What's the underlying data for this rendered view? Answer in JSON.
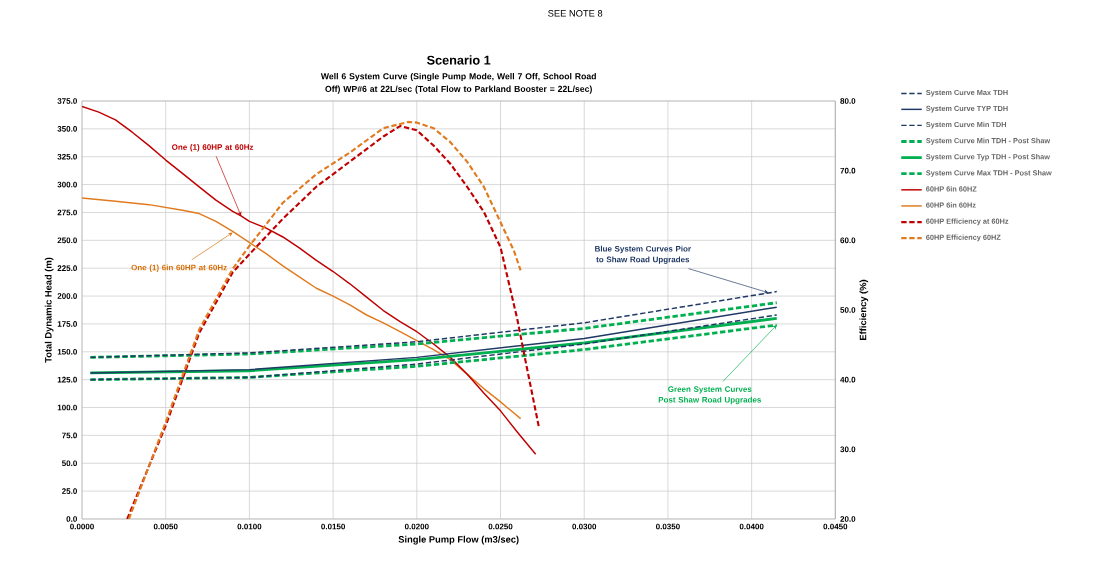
{
  "chart_data": {
    "type": "line",
    "title": "Scenario 1",
    "subtitle": "Well 6 System Curve (Single Pump Mode, Well 7 Off, School Road Off) WP#6 at 22L/sec (Total Flow to Parkland Booster = 22L/sec)",
    "xlabel": "Single Pump Flow (m3/sec)",
    "ylabel": "Total Dynamic Head (m)",
    "y2label": "Efficiency (%)",
    "xlim": [
      0,
      0.045
    ],
    "ylim": [
      0,
      375
    ],
    "y2lim": [
      20,
      80
    ],
    "xticks": [
      {
        "value": 0,
        "label": "0.0000"
      },
      {
        "value": 0.005,
        "label": "0.0050"
      },
      {
        "value": 0.01,
        "label": "0.0100"
      },
      {
        "value": 0.015,
        "label": "0.0150"
      },
      {
        "value": 0.02,
        "label": "0.0200"
      },
      {
        "value": 0.025,
        "label": "0.0250"
      },
      {
        "value": 0.03,
        "label": "0.0300"
      },
      {
        "value": 0.035,
        "label": "0.0350"
      },
      {
        "value": 0.04,
        "label": "0.0400"
      },
      {
        "value": 0.045,
        "label": "0.0450"
      }
    ],
    "yticks": [
      {
        "value": 0,
        "label": "0.0"
      },
      {
        "value": 25,
        "label": "25.0"
      },
      {
        "value": 50,
        "label": "50.0"
      },
      {
        "value": 75,
        "label": "75.0"
      },
      {
        "value": 100,
        "label": "100.0"
      },
      {
        "value": 125,
        "label": "125.0"
      },
      {
        "value": 150,
        "label": "150.0"
      },
      {
        "value": 175,
        "label": "175.0"
      },
      {
        "value": 200,
        "label": "200.0"
      },
      {
        "value": 225,
        "label": "225.0"
      },
      {
        "value": 250,
        "label": "250.0"
      },
      {
        "value": 275,
        "label": "275.0"
      },
      {
        "value": 300,
        "label": "300.0"
      },
      {
        "value": 325,
        "label": "325.0"
      },
      {
        "value": 350,
        "label": "350.0"
      },
      {
        "value": 375,
        "label": "375.0"
      }
    ],
    "y2ticks": [
      {
        "value": 20,
        "label": "20.0"
      },
      {
        "value": 30,
        "label": "30.0"
      },
      {
        "value": 40,
        "label": "40.0"
      },
      {
        "value": 50,
        "label": "50.0"
      },
      {
        "value": 60,
        "label": "60.0"
      },
      {
        "value": 70,
        "label": "70.0"
      },
      {
        "value": 80,
        "label": "80.0"
      }
    ],
    "grid": true,
    "legend": "right",
    "series": [
      {
        "name": "System Curve Max TDH",
        "color": "#1f3864",
        "line_style": "dashed",
        "x": [
          0.0005,
          0.01,
          0.02,
          0.03,
          0.0415
        ],
        "values": [
          145,
          149,
          159,
          176,
          204
        ]
      },
      {
        "name": "System Curve TYP TDH",
        "color": "#1f3864",
        "line_style": "solid",
        "x": [
          0.0005,
          0.01,
          0.02,
          0.03,
          0.0415
        ],
        "values": [
          131,
          134,
          145,
          162,
          190
        ]
      },
      {
        "name": "System Curve Min TDH",
        "color": "#1f3864",
        "line_style": "dashed",
        "x": [
          0.0005,
          0.01,
          0.02,
          0.03,
          0.0415
        ],
        "values": [
          125,
          127,
          139,
          157,
          183
        ]
      },
      {
        "name": "System Curve Min TDH - Post Shaw",
        "color": "#00b050",
        "line_style": "dashed",
        "x": [
          0.0005,
          0.01,
          0.02,
          0.03,
          0.0415
        ],
        "values": [
          125,
          127,
          137,
          152,
          174
        ]
      },
      {
        "name": "System Curve Typ TDH - Post Shaw",
        "color": "#00b050",
        "line_style": "solid",
        "x": [
          0.0005,
          0.01,
          0.02,
          0.03,
          0.0415
        ],
        "values": [
          131,
          133,
          143,
          158,
          180
        ]
      },
      {
        "name": "System Curve Max TDH - Post Shaw",
        "color": "#00b050",
        "line_style": "dashed",
        "x": [
          0.0005,
          0.01,
          0.02,
          0.03,
          0.0415
        ],
        "values": [
          145,
          148,
          157,
          171,
          194
        ]
      },
      {
        "name": "60HP 6in 60HZ",
        "color": "#c00000",
        "line_style": "solid",
        "x": [
          0,
          0.001,
          0.002,
          0.003,
          0.004,
          0.005,
          0.006,
          0.007,
          0.008,
          0.009,
          0.0095,
          0.01,
          0.011,
          0.012,
          0.013,
          0.014,
          0.015,
          0.016,
          0.017,
          0.018,
          0.019,
          0.02,
          0.021,
          0.022,
          0.023,
          0.024,
          0.025,
          0.026,
          0.0271
        ],
        "values": [
          370,
          365,
          358,
          347,
          335,
          322,
          310,
          298,
          286,
          276,
          272,
          267,
          261,
          253,
          243,
          232,
          222,
          211,
          199,
          187,
          177,
          168,
          157,
          145,
          130,
          113,
          97,
          78,
          58
        ]
      },
      {
        "name": "60HP 6in 60Hz",
        "color": "#e07b20",
        "line_style": "solid",
        "x": [
          0,
          0.002,
          0.004,
          0.006,
          0.007,
          0.008,
          0.009,
          0.01,
          0.011,
          0.012,
          0.013,
          0.014,
          0.015,
          0.016,
          0.017,
          0.018,
          0.019,
          0.02,
          0.021,
          0.022,
          0.023,
          0.024,
          0.025,
          0.0262
        ],
        "values": [
          288,
          285,
          282,
          277,
          274,
          267,
          258,
          248,
          238,
          227,
          217,
          207,
          200,
          192,
          183,
          176,
          168,
          160,
          152,
          143,
          130,
          117,
          105,
          90
        ]
      },
      {
        "name": "60HP Efficiency at 60Hz",
        "color": "#c00000",
        "line_style": "dashed",
        "axis": "y2",
        "x": [
          0.0027,
          0.005,
          0.007,
          0.009,
          0.01,
          0.012,
          0.014,
          0.016,
          0.018,
          0.019,
          0.02,
          0.021,
          0.022,
          0.023,
          0.024,
          0.025,
          0.026,
          0.0265,
          0.0273
        ],
        "values": [
          20,
          33.4,
          46.7,
          55.4,
          58,
          63.1,
          67.7,
          71.3,
          74.9,
          76.4,
          75.8,
          73.6,
          71,
          67.7,
          64.1,
          59,
          48.7,
          42.6,
          33.1
        ]
      },
      {
        "name": "60HP Efficiency 60HZ",
        "color": "#e07b20",
        "line_style": "dashed",
        "axis": "y2",
        "x": [
          0.0028,
          0.005,
          0.007,
          0.009,
          0.01,
          0.012,
          0.014,
          0.016,
          0.018,
          0.0195,
          0.02,
          0.021,
          0.022,
          0.023,
          0.024,
          0.025,
          0.0258,
          0.0262
        ],
        "values": [
          20,
          33.9,
          47.2,
          55.9,
          59.2,
          65.4,
          69.5,
          72.6,
          76.1,
          77,
          76.9,
          76.1,
          74.1,
          71.3,
          67.7,
          62.6,
          58.5,
          55.7
        ]
      }
    ],
    "annotations": [
      "SEE NOTE 8",
      {
        "text": "One (1) 60HP at 60Hz",
        "x": 0.0095,
        "y": 272
      },
      {
        "text": "One (1) 6in 60HP at 60Hz",
        "x": 0.009,
        "y": 257
      },
      {
        "text": "Blue System Curves Pior to Shaw Road Upgrades",
        "x": 0.041,
        "y": 203
      },
      {
        "text": "Green System Curves Post Shaw Road Upgrades",
        "x": 0.0415,
        "y": 174
      }
    ]
  }
}
